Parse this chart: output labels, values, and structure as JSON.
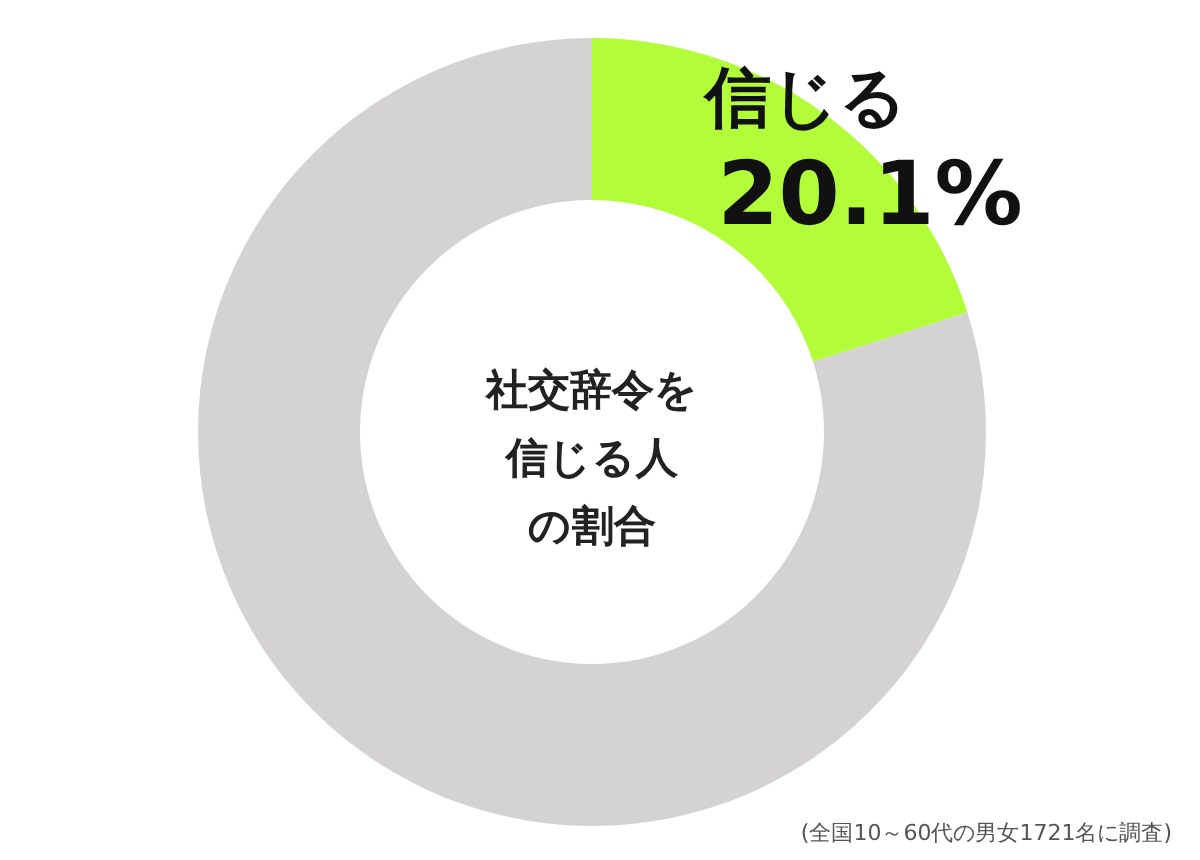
{
  "chart_data": {
    "type": "donut",
    "title": "社交辞令を信じる人の割合",
    "categories": [
      "信じる",
      null
    ],
    "values": [
      20.1,
      79.9
    ],
    "colors": [
      "#b2fc3a",
      "#d4d2d3"
    ],
    "value_labels": [
      "20.1%",
      null
    ],
    "annotations": [
      "(全国10～60代の男女1721名に調査)"
    ]
  }
}
